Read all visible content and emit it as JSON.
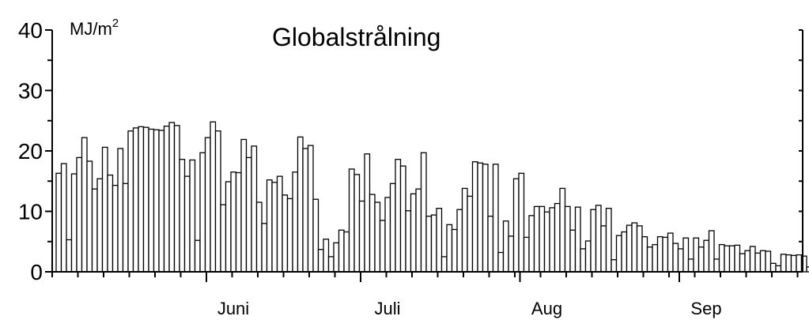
{
  "chart_data": {
    "type": "bar",
    "title": "Globalstrålning",
    "unit": "MJ/m",
    "unit_superscript": "2",
    "ylim": [
      0,
      40
    ],
    "yticks": [
      0,
      10,
      20,
      30,
      40
    ],
    "grid": false,
    "legend": "none",
    "bar_color": "#ffffff",
    "stroke_color": "#000000",
    "x_label_ticks": [
      {
        "day_index": 30,
        "label": "Juni"
      },
      {
        "day_index": 60,
        "label": "Juli"
      },
      {
        "day_index": 91,
        "label": "Aug"
      },
      {
        "day_index": 122,
        "label": "Sep"
      }
    ],
    "values": [
      16.3,
      17.9,
      5.3,
      16.2,
      18.9,
      22.2,
      18.3,
      13.7,
      15.4,
      20.6,
      16.0,
      14.3,
      20.4,
      14.6,
      23.3,
      23.8,
      24.0,
      23.9,
      23.6,
      23.5,
      23.4,
      24.1,
      24.7,
      24.2,
      18.6,
      15.8,
      18.5,
      5.2,
      19.7,
      22.2,
      24.8,
      23.3,
      11.1,
      14.9,
      16.5,
      16.4,
      21.9,
      18.9,
      20.8,
      11.5,
      8.0,
      15.2,
      14.8,
      15.8,
      12.7,
      12.1,
      16.5,
      22.3,
      20.4,
      20.9,
      12.0,
      3.7,
      5.4,
      2.5,
      4.8,
      6.9,
      6.6,
      17.0,
      16.1,
      11.7,
      19.5,
      12.8,
      11.5,
      8.5,
      12.3,
      14.6,
      18.6,
      17.5,
      10.1,
      12.9,
      13.7,
      19.7,
      9.2,
      9.4,
      10.5,
      2.5,
      7.8,
      7.0,
      10.3,
      13.8,
      12.5,
      18.2,
      18.0,
      17.8,
      9.2,
      17.8,
      3.2,
      8.4,
      5.9,
      15.4,
      16.3,
      5.7,
      9.3,
      10.8,
      10.8,
      9.9,
      10.6,
      11.3,
      13.8,
      10.8,
      6.9,
      10.7,
      3.8,
      5.1,
      10.3,
      11.0,
      7.6,
      10.5,
      2.0,
      6.0,
      6.6,
      7.7,
      8.1,
      7.6,
      5.8,
      4.1,
      4.5,
      5.8,
      5.7,
      6.4,
      4.7,
      3.8,
      5.6,
      2.1,
      5.6,
      4.1,
      5.2,
      6.8,
      2.1,
      4.5,
      4.3,
      4.3,
      4.4,
      3.0,
      3.5,
      4.2,
      3.1,
      3.5,
      3.4,
      1.4,
      1.0,
      2.9,
      2.8,
      2.7,
      2.8,
      2.6,
      0.8
    ]
  }
}
